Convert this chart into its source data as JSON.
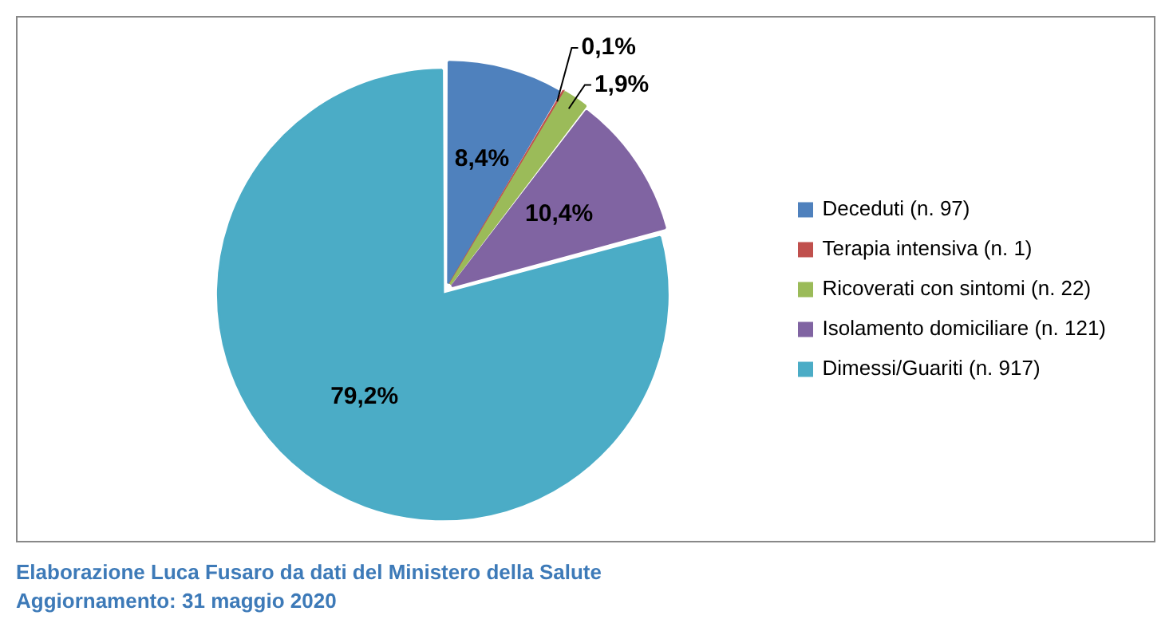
{
  "chart_data": {
    "type": "pie",
    "categories": [
      "Deceduti (n. 97)",
      "Terapia intensiva (n. 1)",
      "Ricoverati con sintomi (n. 22)",
      "Isolamento domiciliare (n. 121)",
      "Dimessi/Guariti (n. 917)"
    ],
    "values": [
      8.4,
      0.1,
      1.9,
      10.4,
      79.2
    ],
    "colors": [
      "#4f81bd",
      "#c0504d",
      "#9bbb59",
      "#8064a2",
      "#4bacc6"
    ],
    "value_labels": [
      "8,4%",
      "0,1%",
      "1,9%",
      "10,4%",
      "79,2%"
    ],
    "legend": "right",
    "annotations": [
      "Elaborazione Luca Fusaro da dati del Ministero della Salute",
      "Aggiornamento: 31 maggio 2020"
    ]
  }
}
